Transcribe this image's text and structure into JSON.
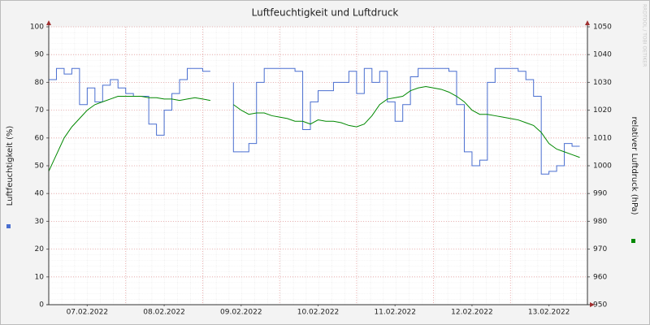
{
  "chart_data": {
    "type": "line",
    "title": "Luftfeuchtigkeit und Luftdruck",
    "y_label": "Luftfeuchtigkeit (%)",
    "y2_label": "relativer Luftdruck (hPa)",
    "watermark": "RRDTOOL / TOBI OETIKER",
    "x": [
      0,
      0.1,
      0.2,
      0.3,
      0.4,
      0.5,
      0.6,
      0.7,
      0.8,
      0.9,
      1.0,
      1.1,
      1.2,
      1.3,
      1.4,
      1.5,
      1.6,
      1.7,
      1.8,
      1.9,
      2.0,
      2.1,
      2.2,
      2.3,
      2.4,
      2.5,
      2.6,
      2.7,
      2.8,
      2.9,
      3.0,
      3.1,
      3.2,
      3.3,
      3.4,
      3.5,
      3.6,
      3.7,
      3.8,
      3.9,
      4.0,
      4.1,
      4.2,
      4.3,
      4.4,
      4.5,
      4.6,
      4.7,
      4.8,
      4.9,
      5.0,
      5.1,
      5.2,
      5.3,
      5.4,
      5.5,
      5.6,
      5.7,
      5.8,
      5.9,
      6.0,
      6.1,
      6.2,
      6.3,
      6.4,
      6.5,
      6.6,
      6.7,
      6.8,
      6.9
    ],
    "xlim": [
      0,
      7
    ],
    "xticks": [
      {
        "value": 0.5,
        "label": "07.02.2022"
      },
      {
        "value": 1.5,
        "label": "08.02.2022"
      },
      {
        "value": 2.5,
        "label": "09.02.2022"
      },
      {
        "value": 3.5,
        "label": "10.02.2022"
      },
      {
        "value": 4.5,
        "label": "11.02.2022"
      },
      {
        "value": 5.5,
        "label": "12.02.2022"
      },
      {
        "value": 6.5,
        "label": "13.02.2022"
      }
    ],
    "ylim": [
      0,
      100
    ],
    "yticks": [
      0,
      10,
      20,
      30,
      40,
      50,
      60,
      70,
      80,
      90,
      100
    ],
    "y2lim": [
      950,
      1050
    ],
    "y2ticks": [
      950,
      960,
      970,
      980,
      990,
      1000,
      1010,
      1020,
      1030,
      1040,
      1050
    ],
    "grid": true,
    "series": [
      {
        "color": "#4a6fd0",
        "step": true,
        "values": [
          80,
          81,
          85,
          83,
          85,
          72,
          78,
          73,
          79,
          81,
          78,
          76,
          75,
          75,
          65,
          61,
          70,
          76,
          81,
          85,
          85,
          84,
          null,
          null,
          80,
          55,
          55,
          58,
          80,
          85,
          85,
          85,
          85,
          84,
          63,
          73,
          77,
          77,
          80,
          80,
          84,
          76,
          85,
          80,
          84,
          73,
          66,
          72,
          82,
          85,
          85,
          85,
          85,
          84,
          72,
          55,
          50,
          52,
          80,
          85,
          85,
          85,
          84,
          81,
          75,
          47,
          48,
          50,
          58,
          57
        ]
      },
      {
        "color": "#008800",
        "axis": "y2",
        "values": [
          998,
          1004,
          1010,
          1014,
          1017,
          1020,
          1022,
          1023,
          1024,
          1025,
          1025,
          1025,
          1025,
          1024.5,
          1024.5,
          1024,
          1024,
          1023.5,
          1024,
          1024.5,
          1024,
          1023.5,
          null,
          null,
          1022,
          1020,
          1018.5,
          1019,
          1019,
          1018,
          1017.5,
          1017,
          1016,
          1016,
          1015,
          1016.5,
          1016,
          1016,
          1015.5,
          1014.5,
          1014,
          1015,
          1018,
          1022,
          1024,
          1024.5,
          1025,
          1027,
          1028,
          1028.5,
          1028,
          1027.5,
          1026.5,
          1025,
          1023,
          1020,
          1018.5,
          1018.5,
          1018,
          1017.5,
          1017,
          1016.5,
          1015.5,
          1014.5,
          1012,
          1008,
          1006,
          1005,
          1004,
          1003
        ]
      }
    ]
  }
}
